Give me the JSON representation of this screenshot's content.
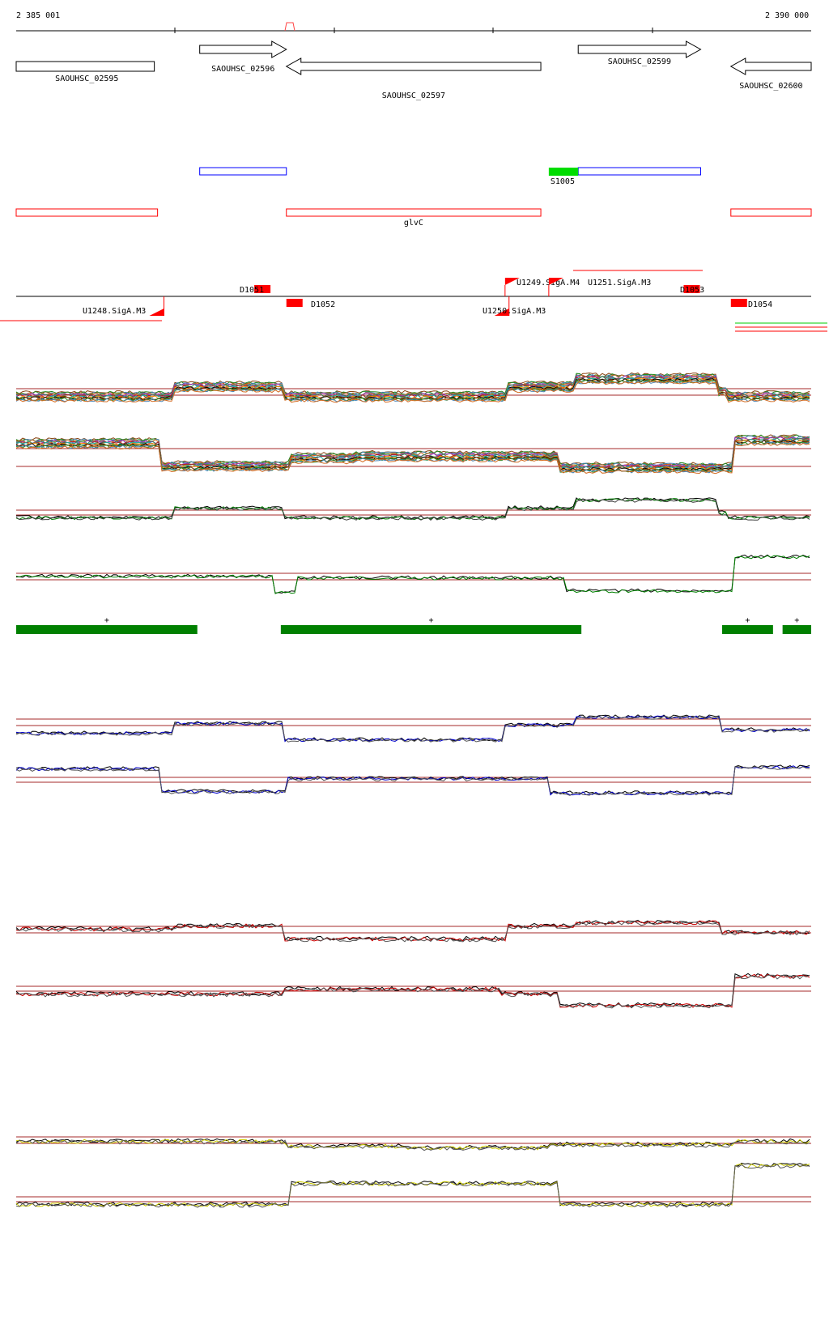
{
  "ruler": {
    "start_label": "2 385 001",
    "end_label": "2 390 000",
    "start": 2385001,
    "end": 2390000
  },
  "genes": [
    {
      "id": "g1",
      "label": "SAOUHSC_02595",
      "strand": "+",
      "start": 2385001,
      "end": 2385890
    },
    {
      "id": "g2",
      "label": "SAOUHSC_02596",
      "strand": "+",
      "start": 2386155,
      "end": 2386700
    },
    {
      "id": "g3",
      "label": "SAOUHSC_02597",
      "strand": "-",
      "start": 2386700,
      "end": 2388300
    },
    {
      "id": "g4",
      "label": "SAOUHSC_02599",
      "strand": "+",
      "start": 2388535,
      "end": 2389305
    },
    {
      "id": "g5",
      "label": "SAOUHSC_02600",
      "strand": "-",
      "start": 2389495,
      "end": 2390000
    }
  ],
  "blue_features": [
    {
      "label": "",
      "start": 2386155,
      "end": 2386700
    },
    {
      "label": "",
      "start": 2388535,
      "end": 2389305
    }
  ],
  "green_feature": {
    "label": "S1005",
    "start": 2388350,
    "end": 2388535,
    "color": "#00dd00"
  },
  "red_features": [
    {
      "label": "",
      "start": 2385001,
      "end": 2385890
    },
    {
      "label": "glvC",
      "start": 2386700,
      "end": 2388300
    },
    {
      "label": "",
      "start": 2389495,
      "end": 2390000
    }
  ],
  "promoters": [
    {
      "label": "U1248.SigA.M3",
      "strand": "-",
      "pos": 2385930
    },
    {
      "label": "U1249.SigA.M4",
      "strand": "+",
      "pos": 2388075
    },
    {
      "label": "U1250.SigA.M3",
      "strand": "-",
      "pos": 2388100
    },
    {
      "label": "U1251.SigA.M3",
      "strand": "+",
      "pos": 2388350
    }
  ],
  "terminators": [
    {
      "label": "D1051",
      "strand": "+",
      "pos": 2386600
    },
    {
      "label": "D1052",
      "strand": "-",
      "pos": 2386700
    },
    {
      "label": "D1053",
      "strand": "+",
      "pos": 2389300
    },
    {
      "label": "D1054",
      "strand": "-",
      "pos": 2389495
    }
  ],
  "segments": [
    {
      "label": "+",
      "start": 2385001,
      "end": 2386140
    },
    {
      "label": "+",
      "start": 2386665,
      "end": 2388555
    },
    {
      "label": "+",
      "start": 2389440,
      "end": 2389760
    },
    {
      "label": "+",
      "start": 2389820,
      "end": 2390000
    }
  ],
  "colors": {
    "gene": "#000000",
    "blue": "#0000ff",
    "red": "#ff0000",
    "green_bar": "#008000",
    "threshold": "#a52a2a",
    "track_green": "#008000",
    "track_blue": "#0000cc",
    "track_red": "#cc0000",
    "track_yellow": "#cccc00"
  }
}
